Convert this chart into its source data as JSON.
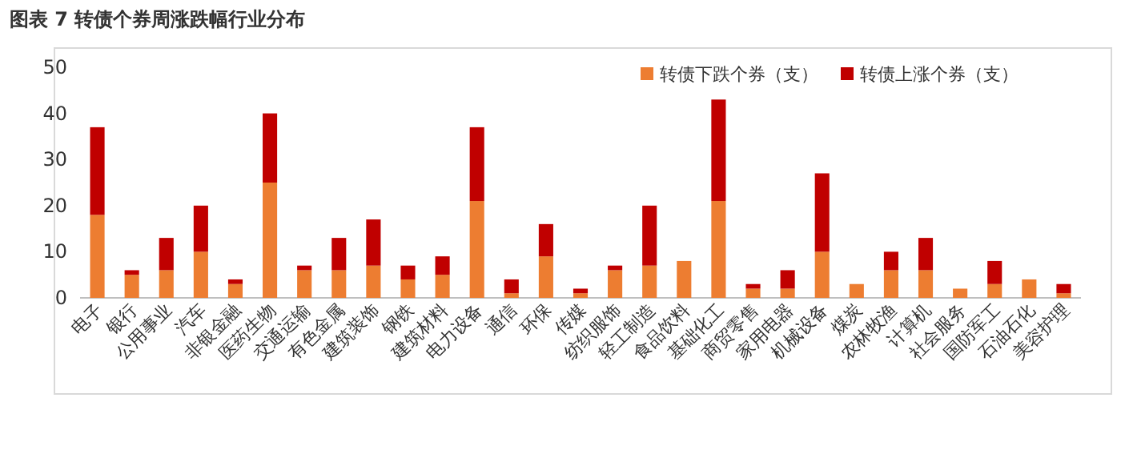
{
  "chart_data": {
    "type": "bar",
    "title": "图表 7  转债个券周涨跌幅行业分布",
    "stacked": true,
    "legend": "top right",
    "grid": false,
    "categories": [
      "电子",
      "银行",
      "公用事业",
      "汽车",
      "非银金融",
      "医药生物",
      "交通运输",
      "有色金属",
      "建筑装饰",
      "钢铁",
      "建筑材料",
      "电力设备",
      "通信",
      "环保",
      "传媒",
      "纺织服饰",
      "轻工制造",
      "食品饮料",
      "基础化工",
      "商贸零售",
      "家用电器",
      "机械设备",
      "煤炭",
      "农林牧渔",
      "计算机",
      "社会服务",
      "国防军工",
      "石油石化",
      "美容护理"
    ],
    "ylim": [
      0,
      50
    ],
    "yticks": [
      0,
      10,
      20,
      30,
      40,
      50
    ],
    "series": [
      {
        "name": "转债下跌个券（支）",
        "color": "#ed7d31",
        "values": [
          18,
          5,
          6,
          10,
          3,
          25,
          6,
          6,
          7,
          4,
          5,
          21,
          1,
          9,
          1,
          6,
          7,
          8,
          21,
          2,
          2,
          10,
          3,
          6,
          6,
          2,
          3,
          4,
          1
        ]
      },
      {
        "name": "转债上涨个券（支）",
        "color": "#c00000",
        "values": [
          19,
          1,
          7,
          10,
          1,
          15,
          1,
          7,
          10,
          3,
          4,
          16,
          3,
          7,
          1,
          1,
          13,
          0,
          22,
          1,
          4,
          17,
          0,
          4,
          7,
          0,
          5,
          0,
          2
        ]
      }
    ]
  }
}
